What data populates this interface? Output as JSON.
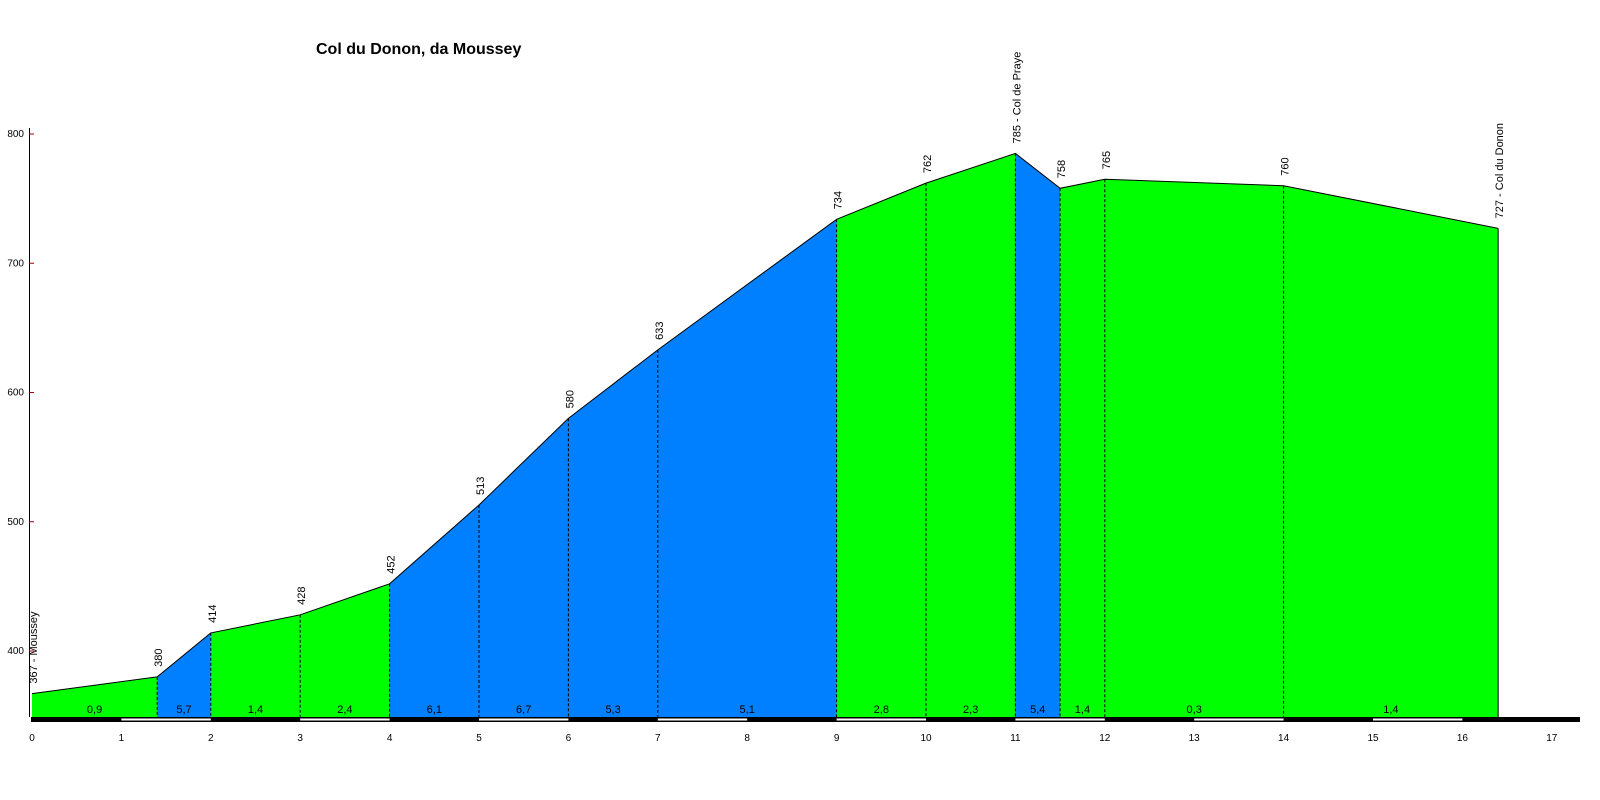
{
  "chart_data": {
    "type": "area",
    "title": "Col du Donon, da Moussey",
    "xlabel": "",
    "ylabel": "",
    "xlim": [
      0,
      17
    ],
    "ylim": [
      350,
      800
    ],
    "x_ticks": [
      0,
      1,
      2,
      3,
      4,
      5,
      6,
      7,
      8,
      9,
      10,
      11,
      12,
      13,
      14,
      15,
      16,
      17
    ],
    "y_ticks": [
      400,
      500,
      600,
      700,
      800
    ],
    "profile": [
      {
        "km": 0,
        "alt": 367,
        "label": "367 - Moussey"
      },
      {
        "km": 1.4,
        "alt": 380,
        "label": "380"
      },
      {
        "km": 2,
        "alt": 414,
        "label": "414"
      },
      {
        "km": 3,
        "alt": 428,
        "label": "428"
      },
      {
        "km": 4,
        "alt": 452,
        "label": "452"
      },
      {
        "km": 5,
        "alt": 513,
        "label": "513"
      },
      {
        "km": 6,
        "alt": 580,
        "label": "580"
      },
      {
        "km": 7,
        "alt": 633,
        "label": "633"
      },
      {
        "km": 9,
        "alt": 734,
        "label": "734"
      },
      {
        "km": 10,
        "alt": 762,
        "label": "762"
      },
      {
        "km": 11,
        "alt": 785,
        "label": "785 - Col de Praye"
      },
      {
        "km": 11.5,
        "alt": 758,
        "label": "758"
      },
      {
        "km": 12,
        "alt": 765,
        "label": "765"
      },
      {
        "km": 14,
        "alt": 760,
        "label": "760"
      },
      {
        "km": 16.4,
        "alt": 727,
        "label": "727 - Col du Donon"
      }
    ],
    "segments": [
      {
        "from": 0,
        "to": 1.4,
        "gradient": "0,9",
        "color": "#00ff00"
      },
      {
        "from": 1.4,
        "to": 2,
        "gradient": "5,7",
        "color": "#0080ff"
      },
      {
        "from": 2,
        "to": 3,
        "gradient": "1,4",
        "color": "#00ff00"
      },
      {
        "from": 3,
        "to": 4,
        "gradient": "2,4",
        "color": "#00ff00"
      },
      {
        "from": 4,
        "to": 5,
        "gradient": "6,1",
        "color": "#0080ff"
      },
      {
        "from": 5,
        "to": 6,
        "gradient": "6,7",
        "color": "#0080ff"
      },
      {
        "from": 6,
        "to": 7,
        "gradient": "5,3",
        "color": "#0080ff"
      },
      {
        "from": 7,
        "to": 9,
        "gradient": "5,1",
        "color": "#0080ff"
      },
      {
        "from": 9,
        "to": 10,
        "gradient": "2,8",
        "color": "#00ff00"
      },
      {
        "from": 10,
        "to": 11,
        "gradient": "2,3",
        "color": "#00ff00"
      },
      {
        "from": 11,
        "to": 11.5,
        "gradient": "5,4",
        "color": "#0080ff"
      },
      {
        "from": 11.5,
        "to": 12,
        "gradient": "1,4",
        "color": "#00ff00"
      },
      {
        "from": 12,
        "to": 14,
        "gradient": "0,3",
        "color": "#00ff00"
      },
      {
        "from": 14,
        "to": 16.4,
        "gradient": "1,4",
        "color": "#00ff00"
      }
    ],
    "colors": {
      "green": "#00ff00",
      "blue": "#0080ff",
      "outline": "#000000",
      "axis_tick": "#a00000"
    },
    "grid": false,
    "legend": "none"
  }
}
